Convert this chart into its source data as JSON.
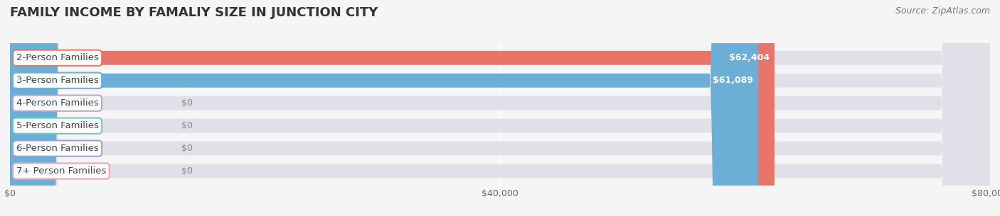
{
  "title": "FAMILY INCOME BY FAMALIY SIZE IN JUNCTION CITY",
  "source": "Source: ZipAtlas.com",
  "categories": [
    "2-Person Families",
    "3-Person Families",
    "4-Person Families",
    "5-Person Families",
    "6-Person Families",
    "7+ Person Families"
  ],
  "values": [
    62404,
    61089,
    0,
    0,
    0,
    0
  ],
  "bar_colors": [
    "#E8756A",
    "#6BAED6",
    "#C4A0C8",
    "#6EC6BF",
    "#9B9FD4",
    "#F4A0B5"
  ],
  "xlim": [
    0,
    80000
  ],
  "xticks": [
    0,
    40000,
    80000
  ],
  "xtick_labels": [
    "$0",
    "$40,000",
    "$80,000"
  ],
  "background_color": "#f5f5f5",
  "bar_bg_color": "#e0e0e8",
  "title_fontsize": 13,
  "source_fontsize": 9,
  "label_fontsize": 9.5,
  "value_fontsize": 9,
  "bar_height": 0.62,
  "rounding_size": 4000
}
